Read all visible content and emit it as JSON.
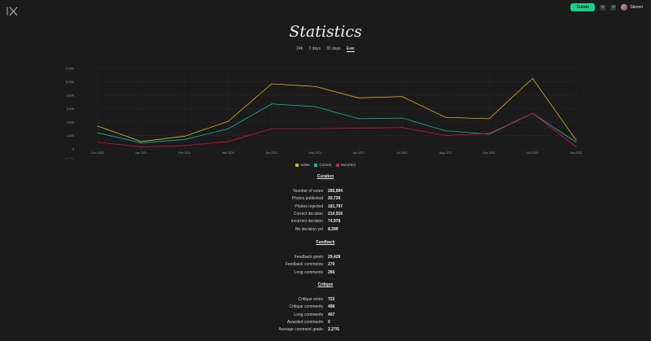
{
  "header": {
    "create_label": "Curate",
    "username": "Steven",
    "icons": [
      "gear-icon",
      "mail-icon"
    ]
  },
  "page_title": "Statistics",
  "tabs": [
    {
      "label": "24h",
      "active": false
    },
    {
      "label": "7 days",
      "active": false
    },
    {
      "label": "30 days",
      "active": false
    },
    {
      "label": "Ever",
      "active": true
    }
  ],
  "chart_data": {
    "type": "line",
    "categories": [
      "Dec 2020",
      "Jan 2021",
      "Feb 2021",
      "Mar 2021",
      "Apr 2021",
      "May 2021",
      "Jun 2021",
      "Jul 2021",
      "Aug 2021",
      "Sep 2021",
      "Oct 2021",
      "Nov 2021"
    ],
    "ylim": [
      0,
      12000
    ],
    "yticks": [
      "0",
      "2,000",
      "4,000",
      "6,000",
      "8,000",
      "10,000",
      "12,000"
    ],
    "grid": true,
    "legend_position": "bottom",
    "series": [
      {
        "name": "Votes",
        "color": "#d4b52a",
        "values": [
          3400,
          1100,
          1900,
          4100,
          9700,
          9300,
          7600,
          7800,
          4700,
          4500,
          10500,
          1300
        ]
      },
      {
        "name": "Correct",
        "color": "#1fb3a8",
        "values": [
          2400,
          900,
          1400,
          3000,
          6700,
          6300,
          4500,
          4600,
          2700,
          2200,
          5300,
          1000
        ]
      },
      {
        "name": "Incorrect",
        "color": "#d6143c",
        "values": [
          1000,
          300,
          500,
          1100,
          3000,
          3000,
          3100,
          3200,
          2000,
          2300,
          5300,
          300
        ]
      }
    ]
  },
  "sections": [
    {
      "title": "Curation",
      "rows": [
        {
          "label": "Number of votes",
          "value": "285,894"
        },
        {
          "label": "Photos published",
          "value": "20,720"
        },
        {
          "label": "Photos rejected",
          "value": "181,797"
        },
        {
          "label": "Correct decision",
          "value": "210,916"
        },
        {
          "label": "Incorrect decision",
          "value": "74,978"
        },
        {
          "label": "No decision yet",
          "value": "8,399"
        }
      ]
    },
    {
      "title": "Feedback",
      "rows": [
        {
          "label": "Feedback given",
          "value": "29,429"
        },
        {
          "label": "Feedback comments",
          "value": "270"
        },
        {
          "label": "Long comments",
          "value": "266"
        }
      ]
    },
    {
      "title": "Critique",
      "rows": [
        {
          "label": "Critique votes",
          "value": "722"
        },
        {
          "label": "Critique comments",
          "value": "408"
        },
        {
          "label": "Long comments",
          "value": "407"
        },
        {
          "label": "Awarded comments",
          "value": "0"
        },
        {
          "label": "Average comment grade",
          "value": "2.27/5"
        }
      ]
    }
  ]
}
